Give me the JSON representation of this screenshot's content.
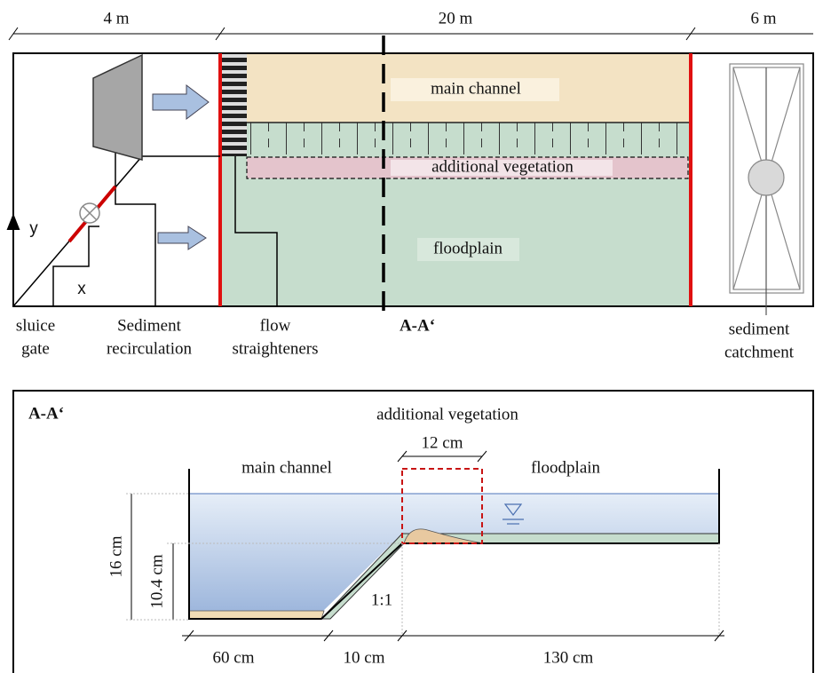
{
  "plan": {
    "dimensions": [
      "4 m",
      "20 m",
      "6 m"
    ],
    "zones": {
      "main_channel": "main channel",
      "additional_vegetation": "additional vegetation",
      "floodplain": "floodplain"
    },
    "axes": {
      "y": "y",
      "x": "x"
    },
    "section_marker": "A-A‘",
    "labels": [
      [
        "sluice",
        "gate"
      ],
      [
        "Sediment",
        "recirculation"
      ],
      [
        "flow",
        "straighteners"
      ],
      [
        "sediment",
        "catchment"
      ]
    ]
  },
  "section": {
    "title": "A-A‘",
    "vegetation_label": "additional vegetation",
    "vegetation_width": "12 cm",
    "main_channel": "main channel",
    "floodplain": "floodplain",
    "heights": [
      "16 cm",
      "10.4 cm"
    ],
    "slope": "1:1",
    "widths": [
      "60 cm",
      "10 cm",
      "130 cm"
    ]
  }
}
